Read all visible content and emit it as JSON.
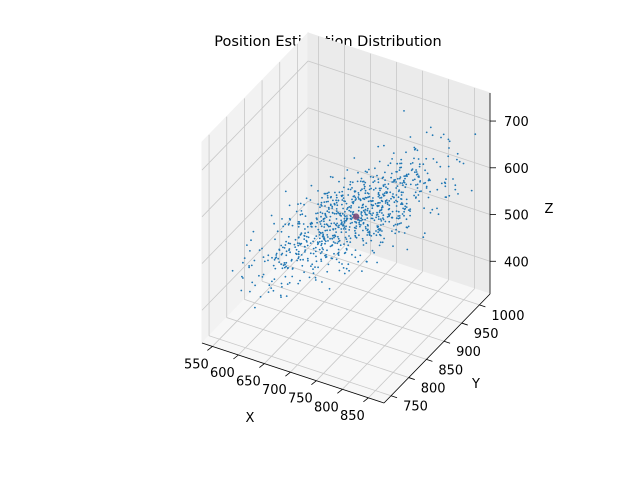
{
  "chart_data": {
    "type": "scatter",
    "projection": "3d",
    "title": "Position Estimation Distribution",
    "xlabel": "X",
    "ylabel": "Y",
    "zlabel": "Z",
    "xlim": [
      530,
      880
    ],
    "ylim": [
      730,
      1030
    ],
    "zlim": [
      330,
      760
    ],
    "xticks": [
      550,
      600,
      650,
      700,
      750,
      800,
      850
    ],
    "yticks": [
      750,
      800,
      850,
      900,
      950,
      1000
    ],
    "zticks": [
      400,
      500,
      600,
      700
    ],
    "grid": true,
    "point_color": "#1f77b4",
    "center_color": "#7b4a78",
    "center_point": {
      "x": 723,
      "y": 882,
      "z": 553
    },
    "cloud": {
      "mean": {
        "x": 723,
        "y": 882,
        "z": 553
      },
      "std": {
        "x": 62,
        "y": 48,
        "z": 52
      },
      "dominant_corr": 0.82,
      "count": 900
    }
  }
}
